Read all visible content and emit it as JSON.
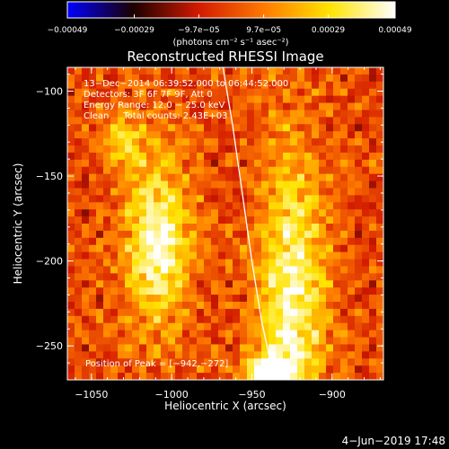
{
  "chart_data": {
    "type": "heatmap",
    "title": "Reconstructed RHESSI Image",
    "xlabel": "Heliocentric X (arcsec)",
    "ylabel": "Heliocentric Y (arcsec)",
    "xlim": [
      -1065,
      -868
    ],
    "ylim": [
      -270,
      -86
    ],
    "xticks": [
      -1050,
      -1000,
      -950,
      -900
    ],
    "xtick_labels": [
      "−1050",
      "−1000",
      "−950",
      "−900"
    ],
    "yticks": [
      -100,
      -150,
      -200,
      -250
    ],
    "ytick_labels": [
      "−100",
      "−150",
      "−200",
      "−250"
    ],
    "colorbar": {
      "range": [
        -0.00049,
        0.00049
      ],
      "ticks": [
        -0.00049,
        -0.00029,
        -9.7e-05,
        9.7e-05,
        0.00029,
        0.00049
      ],
      "tick_labels": [
        "−0.00049",
        "−0.00029",
        "−9.7e−05",
        "9.7e−05",
        "0.00029",
        "0.00049"
      ],
      "unit_label": "(photons cm⁻² s⁻¹ asec⁻²)",
      "colormap": [
        "#0000ff",
        "#1a0000",
        "#d21a00",
        "#ff7a00",
        "#ffe300",
        "#ffffff"
      ]
    },
    "sources": [
      {
        "x": -1008,
        "y": -190,
        "peak": 0.00047,
        "sx": 14,
        "sy": 34
      },
      {
        "x": -925,
        "y": -220,
        "peak": 0.00045,
        "sx": 14,
        "sy": 60
      },
      {
        "x": -1030,
        "y": -130,
        "peak": 0.00026,
        "sx": 9,
        "sy": 12
      },
      {
        "x": -940,
        "y": -265,
        "peak": 0.00049,
        "sx": 10,
        "sy": 8
      }
    ],
    "limb_curve": [
      [
        -968,
        -86
      ],
      [
        -962,
        -120
      ],
      [
        -956,
        -160
      ],
      [
        -950,
        -200
      ],
      [
        -944,
        -235
      ],
      [
        -936,
        -270
      ]
    ],
    "annotations": [
      "13−Dec−2014 06:39:52.000 to 06:44:52.000",
      "Detectors: 3F 6F 7F 9F, Att 0",
      "Energy Range: 12.0 − 25.0 keV",
      "Clean     Total counts: 2.43E+03"
    ],
    "peak_label": "Position of Peak = [−942,−272]",
    "date_stamp": "4−Jun−2019 17:48"
  },
  "colors": {
    "background": "#000000",
    "text": "#ffffff",
    "noise_base": "#5a2c9a"
  }
}
